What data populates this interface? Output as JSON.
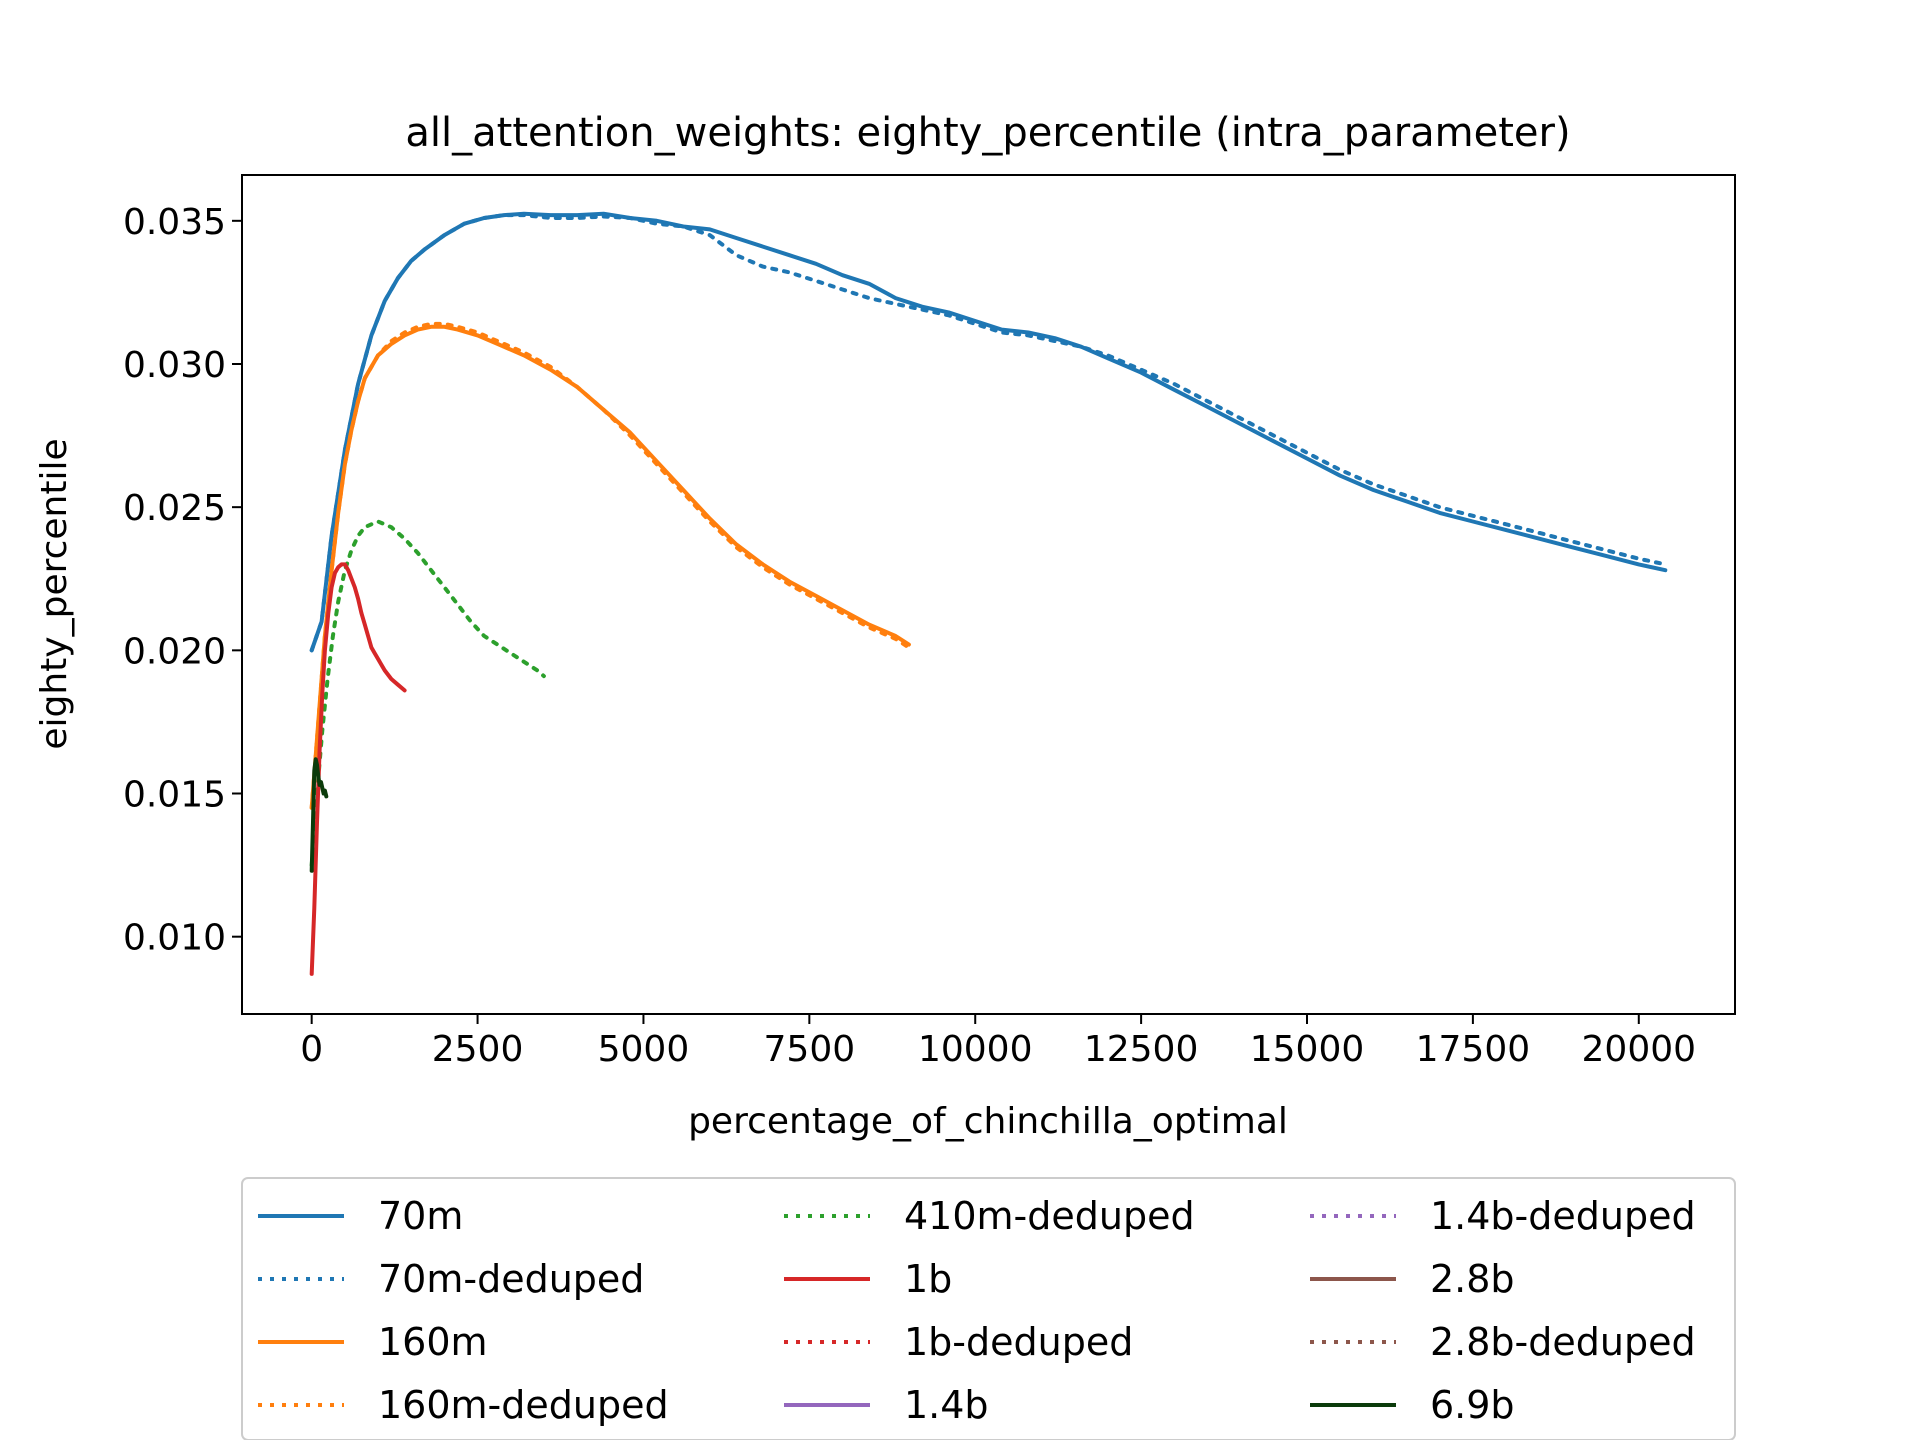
{
  "chart_data": {
    "type": "line",
    "title": "all_attention_weights: eighty_percentile (intra_parameter)",
    "xlabel": "percentage_of_chinchilla_optimal",
    "ylabel": "eighty_percentile",
    "xlim": [
      -1050,
      21450
    ],
    "ylim": [
      0.0073,
      0.0366
    ],
    "x_ticks": [
      0,
      2500,
      5000,
      7500,
      10000,
      12500,
      15000,
      17500,
      20000
    ],
    "x_tick_labels": [
      "0",
      "2500",
      "5000",
      "7500",
      "10000",
      "12500",
      "15000",
      "17500",
      "20000"
    ],
    "y_ticks": [
      0.01,
      0.015,
      0.02,
      0.025,
      0.03,
      0.035
    ],
    "y_tick_labels": [
      "0.010",
      "0.015",
      "0.020",
      "0.025",
      "0.030",
      "0.035"
    ],
    "grid": false,
    "legend_position": "below plot, 3 columns",
    "series": [
      {
        "name": "70m",
        "color": "#1f77b4",
        "style": "solid",
        "x": [
          0,
          150,
          300,
          500,
          700,
          900,
          1100,
          1300,
          1500,
          1700,
          2000,
          2300,
          2600,
          2900,
          3200,
          3600,
          4000,
          4400,
          4800,
          5200,
          5600,
          6000,
          6400,
          6800,
          7200,
          7600,
          8000,
          8400,
          8800,
          9200,
          9600,
          10000,
          10400,
          10800,
          11200,
          11600,
          12000,
          12500,
          13000,
          13500,
          14000,
          14500,
          15000,
          15500,
          16000,
          16500,
          17000,
          17500,
          18000,
          18500,
          19000,
          19500,
          20000,
          20400
        ],
        "y": [
          0.02,
          0.021,
          0.024,
          0.027,
          0.0293,
          0.031,
          0.0322,
          0.033,
          0.0336,
          0.034,
          0.0345,
          0.0349,
          0.0351,
          0.0352,
          0.03525,
          0.0352,
          0.0352,
          0.03525,
          0.0351,
          0.035,
          0.0348,
          0.0347,
          0.0344,
          0.0341,
          0.0338,
          0.0335,
          0.0331,
          0.0328,
          0.0323,
          0.032,
          0.0318,
          0.0315,
          0.0312,
          0.0311,
          0.0309,
          0.0306,
          0.0302,
          0.0297,
          0.0291,
          0.0285,
          0.0279,
          0.0273,
          0.0267,
          0.0261,
          0.0256,
          0.0252,
          0.0248,
          0.0245,
          0.0242,
          0.0239,
          0.0236,
          0.0233,
          0.023,
          0.0228
        ]
      },
      {
        "name": "70m-deduped",
        "color": "#1f77b4",
        "style": "dotted",
        "x": [
          0,
          150,
          300,
          500,
          700,
          900,
          1100,
          1300,
          1500,
          1700,
          2000,
          2300,
          2600,
          2900,
          3200,
          3600,
          4000,
          4400,
          4800,
          5200,
          5600,
          6000,
          6400,
          6800,
          7200,
          7600,
          8000,
          8400,
          8800,
          9200,
          9600,
          10000,
          10400,
          10800,
          11200,
          11600,
          12000,
          12500,
          13000,
          13500,
          14000,
          14500,
          15000,
          15500,
          16000,
          16500,
          17000,
          17500,
          18000,
          18500,
          19000,
          19500,
          20000,
          20400
        ],
        "y": [
          0.02,
          0.021,
          0.024,
          0.027,
          0.0293,
          0.031,
          0.0322,
          0.033,
          0.0336,
          0.034,
          0.0345,
          0.0349,
          0.0351,
          0.0352,
          0.0352,
          0.0351,
          0.0351,
          0.03515,
          0.0351,
          0.0349,
          0.0348,
          0.0345,
          0.0338,
          0.0334,
          0.0332,
          0.0329,
          0.0326,
          0.0323,
          0.0321,
          0.0319,
          0.0317,
          0.0314,
          0.0311,
          0.031,
          0.0308,
          0.0306,
          0.0303,
          0.0298,
          0.0293,
          0.0287,
          0.0281,
          0.0275,
          0.0269,
          0.0263,
          0.0258,
          0.0254,
          0.025,
          0.0247,
          0.0244,
          0.0241,
          0.0238,
          0.0235,
          0.0232,
          0.023
        ]
      },
      {
        "name": "160m",
        "color": "#ff7f0e",
        "style": "solid",
        "x": [
          0,
          100,
          200,
          300,
          400,
          500,
          600,
          700,
          800,
          1000,
          1200,
          1400,
          1600,
          1800,
          2000,
          2200,
          2500,
          2800,
          3200,
          3600,
          4000,
          4400,
          4800,
          5200,
          5600,
          6000,
          6400,
          6800,
          7200,
          7600,
          8000,
          8400,
          8800,
          9000
        ],
        "y": [
          0.0145,
          0.0175,
          0.0205,
          0.0228,
          0.0248,
          0.0265,
          0.0277,
          0.0287,
          0.0295,
          0.0303,
          0.0307,
          0.031,
          0.0312,
          0.0313,
          0.0313,
          0.0312,
          0.031,
          0.0307,
          0.0303,
          0.0298,
          0.0292,
          0.0284,
          0.0276,
          0.0266,
          0.0256,
          0.0246,
          0.0237,
          0.023,
          0.0224,
          0.0219,
          0.0214,
          0.0209,
          0.0205,
          0.0202
        ]
      },
      {
        "name": "160m-deduped",
        "color": "#ff7f0e",
        "style": "dotted",
        "x": [
          0,
          100,
          200,
          300,
          400,
          500,
          600,
          700,
          800,
          1000,
          1200,
          1400,
          1600,
          1800,
          2000,
          2200,
          2500,
          2800,
          3200,
          3600,
          4000,
          4400,
          4800,
          5200,
          5600,
          6000,
          6400,
          6800,
          7200,
          7600,
          8000,
          8400,
          8800,
          9000
        ],
        "y": [
          0.0145,
          0.0175,
          0.0205,
          0.0228,
          0.0248,
          0.0265,
          0.0277,
          0.0287,
          0.0295,
          0.0303,
          0.0308,
          0.0311,
          0.0313,
          0.0314,
          0.0314,
          0.0313,
          0.0311,
          0.0308,
          0.0304,
          0.0299,
          0.0292,
          0.0284,
          0.0275,
          0.0265,
          0.0255,
          0.0245,
          0.0236,
          0.0229,
          0.0223,
          0.0218,
          0.0213,
          0.0208,
          0.0204,
          0.0201
        ]
      },
      {
        "name": "410m-deduped",
        "color": "#2ca02c",
        "style": "dotted",
        "x": [
          0,
          80,
          160,
          240,
          320,
          400,
          500,
          600,
          700,
          800,
          900,
          1000,
          1100,
          1200,
          1300,
          1400,
          1600,
          1800,
          2000,
          2200,
          2400,
          2600,
          2800,
          3000,
          3200,
          3400,
          3500
        ],
        "y": [
          0.0125,
          0.015,
          0.0172,
          0.019,
          0.0205,
          0.0217,
          0.0228,
          0.0235,
          0.024,
          0.0243,
          0.0244,
          0.0245,
          0.0244,
          0.0243,
          0.0241,
          0.0239,
          0.0234,
          0.0228,
          0.0222,
          0.0216,
          0.021,
          0.0205,
          0.0202,
          0.0199,
          0.0196,
          0.0193,
          0.0191
        ]
      },
      {
        "name": "1b",
        "color": "#d62728",
        "style": "solid",
        "x": [
          0,
          40,
          80,
          120,
          160,
          200,
          250,
          300,
          350,
          400,
          450,
          500,
          550,
          600,
          650,
          700,
          750,
          800,
          850,
          900,
          950,
          1000,
          1100,
          1200,
          1300,
          1400
        ],
        "y": [
          0.0087,
          0.011,
          0.014,
          0.0165,
          0.0185,
          0.02,
          0.0213,
          0.0222,
          0.0227,
          0.0229,
          0.023,
          0.023,
          0.0228,
          0.0225,
          0.0222,
          0.0218,
          0.0213,
          0.0209,
          0.0205,
          0.0201,
          0.0199,
          0.0197,
          0.0193,
          0.019,
          0.0188,
          0.0186
        ]
      },
      {
        "name": "1b-deduped",
        "color": "#d62728",
        "style": "dotted",
        "x": [],
        "y": []
      },
      {
        "name": "1.4b",
        "color": "#9467bd",
        "style": "solid",
        "x": [],
        "y": []
      },
      {
        "name": "1.4b-deduped",
        "color": "#9467bd",
        "style": "dotted",
        "x": [],
        "y": []
      },
      {
        "name": "2.8b",
        "color": "#8c564b",
        "style": "solid",
        "x": [],
        "y": []
      },
      {
        "name": "2.8b-deduped",
        "color": "#8c564b",
        "style": "dotted",
        "x": [],
        "y": []
      },
      {
        "name": "6.9b",
        "color": "#0b3b0b",
        "style": "solid",
        "x": [
          0,
          20,
          40,
          60,
          80,
          100,
          120,
          140,
          160,
          180,
          200,
          220
        ],
        "y": [
          0.0123,
          0.014,
          0.0158,
          0.0162,
          0.016,
          0.0156,
          0.0153,
          0.0154,
          0.0152,
          0.015,
          0.0151,
          0.0149
        ]
      }
    ]
  }
}
